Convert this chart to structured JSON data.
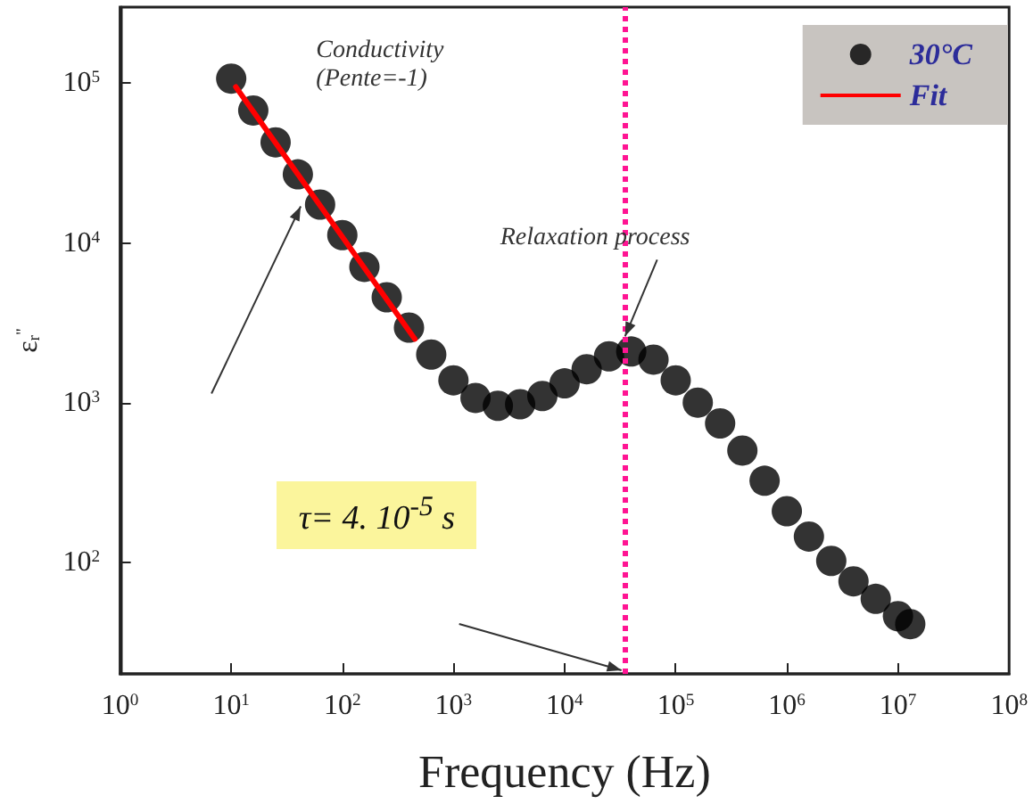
{
  "chart_data": {
    "type": "scatter",
    "xlabel": "Frequency (Hz)",
    "ylabel": "ε$_{r}$$^{\"}$",
    "log": "xy",
    "grid": false,
    "legend": "top right",
    "marker": "circle",
    "xlim": [
      1,
      100000000
    ],
    "ylim": [
      20,
      300000
    ],
    "xticks": [
      {
        "value": 1,
        "label": "10$^{0}$"
      },
      {
        "value": 10,
        "label": "10$^{1}$"
      },
      {
        "value": 100,
        "label": "10$^{2}$"
      },
      {
        "value": 1000,
        "label": "10$^{3}$"
      },
      {
        "value": 10000,
        "label": "10$^{4}$"
      },
      {
        "value": 100000,
        "label": "10$^{5}$"
      },
      {
        "value": 1000000,
        "label": "10$^{6}$"
      },
      {
        "value": 10000000,
        "label": "10$^{7}$"
      },
      {
        "value": 100000000,
        "label": "10$^{8}$"
      }
    ],
    "yticks": [
      {
        "value": 100,
        "label": "10$^{2}$"
      },
      {
        "value": 1000,
        "label": "10$^{3}$"
      },
      {
        "value": 10000,
        "label": "10$^{4}$"
      },
      {
        "value": 100000,
        "label": "10$^{5}$"
      }
    ],
    "series": [
      {
        "name": "30°C",
        "color": "#000000",
        "x": [
          10,
          15.8,
          25.1,
          39.8,
          63.1,
          100,
          158,
          251,
          398,
          631,
          1000,
          1580,
          2510,
          3980,
          6310,
          10000,
          15800,
          25100,
          39800,
          63100,
          100000,
          158000,
          251000,
          398000,
          631000,
          1000000,
          1580000,
          2510000,
          3980000,
          6310000,
          10000000,
          12900000
        ],
        "values": [
          107000,
          67600,
          42700,
          26900,
          17400,
          11200,
          7080,
          4570,
          2950,
          2000,
          1380,
          1070,
          955,
          977,
          1100,
          1320,
          1620,
          1950,
          2090,
          1860,
          1380,
          1000,
          741,
          501,
          324,
          209,
          145,
          102,
          76,
          59,
          46,
          41
        ]
      },
      {
        "name": "Fit",
        "type": "line",
        "color": "#ff0000",
        "marker": "none",
        "x": [
          11,
          450
        ],
        "values": [
          95000,
          2500
        ]
      }
    ],
    "ref_lines": [
      {
        "axis": "x",
        "value": 35000,
        "color": "#ff1493",
        "line_style": "dotted"
      }
    ],
    "annotations": [
      "Conductivity\n(Pente=-1)",
      {
        "text": "Relaxation process",
        "x": 35000,
        "y": 2600
      },
      "τ= 4. 10$^{-5}$ s"
    ]
  }
}
